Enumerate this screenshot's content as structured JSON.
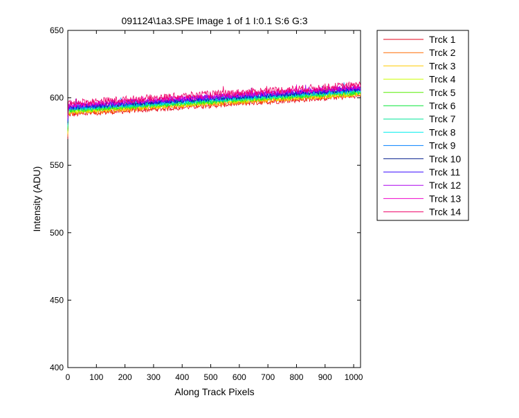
{
  "chart_data": {
    "type": "line",
    "title": "091124\\1a3.SPE  Image 1 of 1  I:0.1  S:6  G:3",
    "xlabel": "Along Track Pixels",
    "ylabel": "Intensity (ADU)",
    "xlim": [
      0,
      1024
    ],
    "ylim": [
      400,
      650
    ],
    "xticks": [
      0,
      100,
      200,
      300,
      400,
      500,
      600,
      700,
      800,
      900,
      1000
    ],
    "yticks": [
      400,
      450,
      500,
      550,
      600,
      650
    ],
    "grid": false,
    "legend_position": "outside-right",
    "series": [
      {
        "name": "Trck 1",
        "color": "#e6001a",
        "start": 587.5,
        "end": 601.5,
        "noise": 2.0
      },
      {
        "name": "Trck 2",
        "color": "#ff6a00",
        "start": 588.5,
        "end": 602.5,
        "noise": 2.0
      },
      {
        "name": "Trck 3",
        "color": "#ffcc00",
        "start": 589.5,
        "end": 603.0,
        "noise": 2.0
      },
      {
        "name": "Trck 4",
        "color": "#ccff00",
        "start": 590.0,
        "end": 603.5,
        "noise": 2.0
      },
      {
        "name": "Trck 5",
        "color": "#55ee00",
        "start": 590.5,
        "end": 604.0,
        "noise": 2.0
      },
      {
        "name": "Trck 6",
        "color": "#00e633",
        "start": 591.0,
        "end": 604.5,
        "noise": 2.0
      },
      {
        "name": "Trck 7",
        "color": "#00e699",
        "start": 591.5,
        "end": 605.0,
        "noise": 2.0
      },
      {
        "name": "Trck 8",
        "color": "#00eeee",
        "start": 592.0,
        "end": 605.5,
        "noise": 2.0
      },
      {
        "name": "Trck 9",
        "color": "#0080ff",
        "start": 592.5,
        "end": 606.0,
        "noise": 2.0
      },
      {
        "name": "Trck 10",
        "color": "#001a8c",
        "start": 593.0,
        "end": 606.5,
        "noise": 2.0
      },
      {
        "name": "Trck 11",
        "color": "#3300ff",
        "start": 593.5,
        "end": 607.0,
        "noise": 2.0
      },
      {
        "name": "Trck 12",
        "color": "#aa00ee",
        "start": 594.0,
        "end": 607.5,
        "noise": 2.0
      },
      {
        "name": "Trck 13",
        "color": "#ee00cc",
        "start": 594.5,
        "end": 608.0,
        "noise": 2.0
      },
      {
        "name": "Trck 14",
        "color": "#ee0066",
        "start": 596.0,
        "end": 609.5,
        "noise": 2.8
      }
    ]
  }
}
